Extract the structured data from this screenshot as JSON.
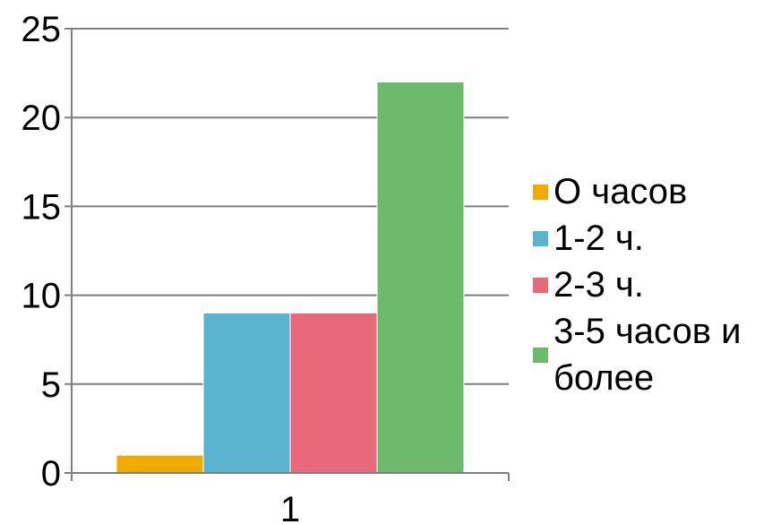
{
  "chart_data": {
    "type": "bar",
    "categories": [
      "1"
    ],
    "series": [
      {
        "name": "О часов",
        "values": [
          1
        ],
        "color": "#f0ab00"
      },
      {
        "name": "1-2 ч.",
        "values": [
          9
        ],
        "color": "#5ab4cf"
      },
      {
        "name": "2-3 ч.",
        "values": [
          9
        ],
        "color": "#e9697a"
      },
      {
        "name": "3-5 часов и более",
        "values": [
          22
        ],
        "color": "#6cbb6c"
      }
    ],
    "y_ticks": [
      "0",
      "5",
      "10",
      "15",
      "20",
      "25"
    ],
    "ylim": [
      0,
      25
    ],
    "grid": true,
    "legend_position": "right"
  }
}
